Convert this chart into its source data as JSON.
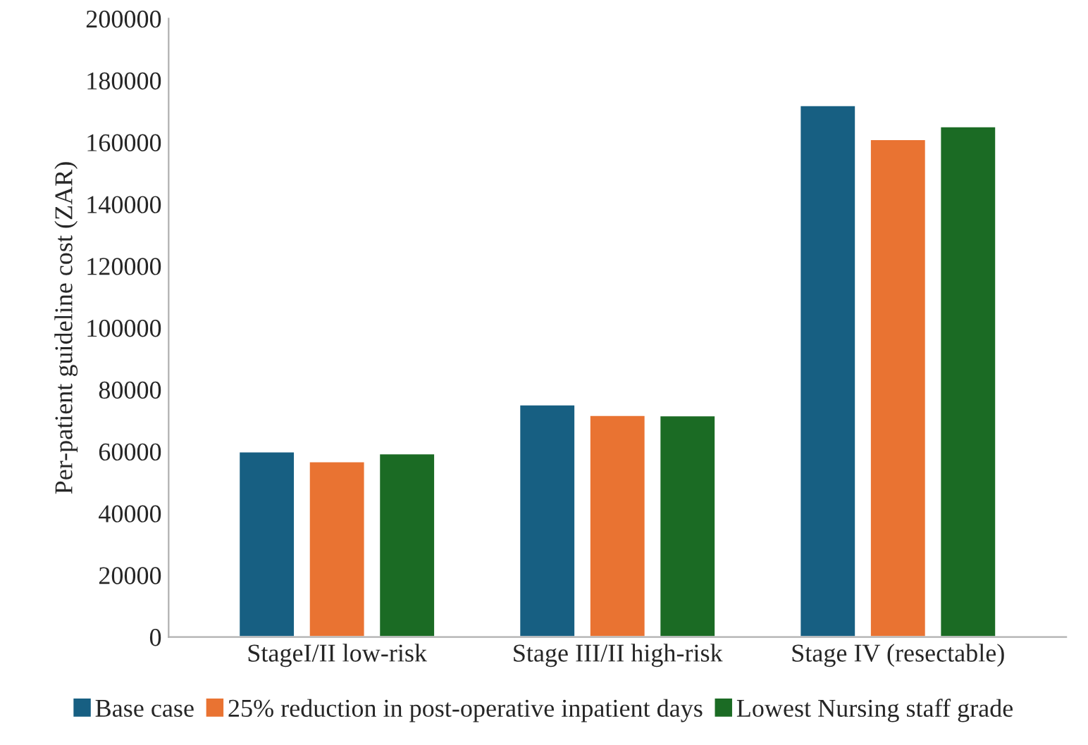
{
  "chart_data": {
    "type": "bar",
    "ylabel": "Per-patient guideline cost (ZAR)",
    "categories": [
      "StageI/II low-risk",
      "Stage III/II high-risk",
      "Stage IV (resectable)"
    ],
    "series": [
      {
        "name": "Base case",
        "color": "#175f82",
        "values": [
          60000,
          75200,
          172000
        ]
      },
      {
        "name": "25% reduction in post-operative inpatient days",
        "color": "#e97332",
        "values": [
          56800,
          71800,
          161000
        ]
      },
      {
        "name": "Lowest Nursing staff grade",
        "color": "#1b6b24",
        "values": [
          59400,
          71700,
          165200
        ]
      }
    ],
    "ylim": [
      0,
      200000
    ],
    "yticks": [
      0,
      20000,
      40000,
      60000,
      80000,
      100000,
      120000,
      140000,
      160000,
      180000,
      200000
    ],
    "grid": false,
    "legend": "bottom"
  }
}
